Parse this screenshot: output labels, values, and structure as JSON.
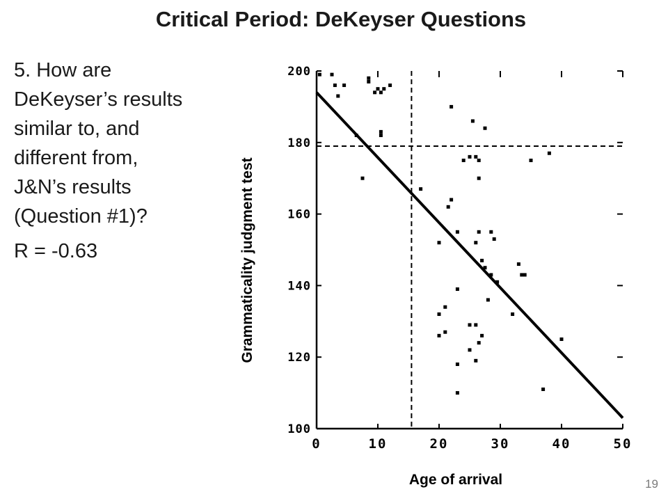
{
  "slide": {
    "title": "Critical Period:  DeKeyser Questions",
    "question": "5.  How are DeKeyser’s results similar to, and different from, J&N’s results (Question #1)?",
    "r_value": "R = -0.63",
    "slide_number": "19"
  },
  "chart_data": {
    "type": "scatter",
    "xlabel": "Age of arrival",
    "ylabel": "Grammaticality judgment test",
    "xlim": [
      0,
      50
    ],
    "ylim": [
      100,
      200
    ],
    "x_ticks": [
      "0",
      "10",
      "20",
      "30",
      "40",
      "50"
    ],
    "y_ticks": [
      "100",
      "120",
      "140",
      "160",
      "180",
      "200"
    ],
    "regression_line": {
      "x": [
        0,
        50
      ],
      "y": [
        194,
        103
      ]
    },
    "reference_lines": {
      "vertical_x": 15.5,
      "horizontal_y": 179
    },
    "points": [
      {
        "x": 0.5,
        "y": 199
      },
      {
        "x": 2.5,
        "y": 199
      },
      {
        "x": 3,
        "y": 196
      },
      {
        "x": 3.5,
        "y": 193
      },
      {
        "x": 4.5,
        "y": 196
      },
      {
        "x": 8.5,
        "y": 198
      },
      {
        "x": 8.5,
        "y": 197
      },
      {
        "x": 9.5,
        "y": 194
      },
      {
        "x": 10,
        "y": 195
      },
      {
        "x": 10.5,
        "y": 194
      },
      {
        "x": 11,
        "y": 195
      },
      {
        "x": 12,
        "y": 196
      },
      {
        "x": 10.5,
        "y": 183
      },
      {
        "x": 10.5,
        "y": 182
      },
      {
        "x": 6.5,
        "y": 182
      },
      {
        "x": 7.5,
        "y": 170
      },
      {
        "x": 22,
        "y": 190
      },
      {
        "x": 25.5,
        "y": 186
      },
      {
        "x": 27.5,
        "y": 184
      },
      {
        "x": 24,
        "y": 175
      },
      {
        "x": 25,
        "y": 176
      },
      {
        "x": 26,
        "y": 176
      },
      {
        "x": 26.5,
        "y": 175
      },
      {
        "x": 26.5,
        "y": 170
      },
      {
        "x": 28.5,
        "y": 155
      },
      {
        "x": 35,
        "y": 175
      },
      {
        "x": 38,
        "y": 177
      },
      {
        "x": 17,
        "y": 167
      },
      {
        "x": 21.5,
        "y": 162
      },
      {
        "x": 22,
        "y": 164
      },
      {
        "x": 23,
        "y": 155
      },
      {
        "x": 20,
        "y": 152
      },
      {
        "x": 26,
        "y": 152
      },
      {
        "x": 26.5,
        "y": 155
      },
      {
        "x": 29,
        "y": 153
      },
      {
        "x": 27,
        "y": 147
      },
      {
        "x": 27.5,
        "y": 145
      },
      {
        "x": 28.5,
        "y": 143
      },
      {
        "x": 29.5,
        "y": 141
      },
      {
        "x": 33,
        "y": 146
      },
      {
        "x": 33.5,
        "y": 143
      },
      {
        "x": 34,
        "y": 143
      },
      {
        "x": 23,
        "y": 139
      },
      {
        "x": 28,
        "y": 136
      },
      {
        "x": 32,
        "y": 132
      },
      {
        "x": 20,
        "y": 132
      },
      {
        "x": 21,
        "y": 134
      },
      {
        "x": 25,
        "y": 129
      },
      {
        "x": 26,
        "y": 129
      },
      {
        "x": 20,
        "y": 126
      },
      {
        "x": 21,
        "y": 127
      },
      {
        "x": 27,
        "y": 126
      },
      {
        "x": 26.5,
        "y": 124
      },
      {
        "x": 25,
        "y": 122
      },
      {
        "x": 26,
        "y": 119
      },
      {
        "x": 23,
        "y": 118
      },
      {
        "x": 23,
        "y": 110
      },
      {
        "x": 37,
        "y": 111
      },
      {
        "x": 40,
        "y": 125
      }
    ]
  }
}
